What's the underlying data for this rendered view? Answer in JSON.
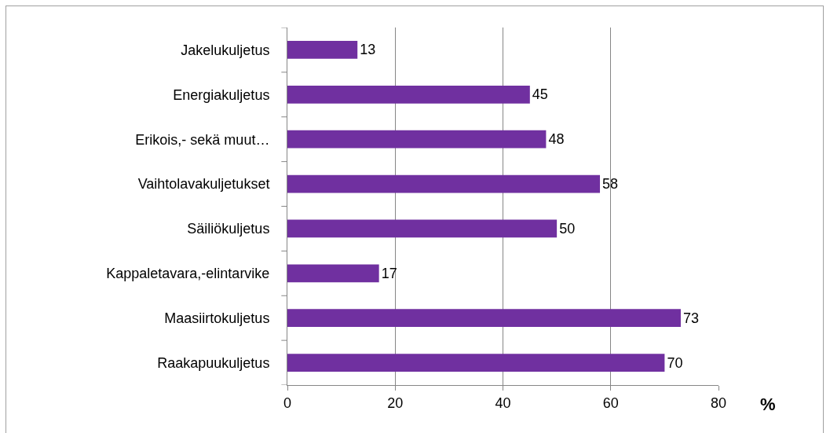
{
  "chart_data": {
    "type": "bar",
    "orientation": "horizontal",
    "categories": [
      "Jakelukuljetus",
      "Energiakuljetus",
      "Erikois,- sekä muut…",
      "Vaihtolavakuljetukset",
      "Säiliökuljetus",
      "Kappaletavara,-elintarvike",
      "Maasiirtokuljetus",
      "Raakapuukuljetus"
    ],
    "values": [
      13,
      45,
      48,
      58,
      50,
      17,
      73,
      70
    ],
    "color": "#7030a0",
    "xlim": [
      0,
      80
    ],
    "xticks": [
      0,
      20,
      40,
      60,
      80
    ],
    "xlabel": "%",
    "grid": "x",
    "data_labels": true
  }
}
